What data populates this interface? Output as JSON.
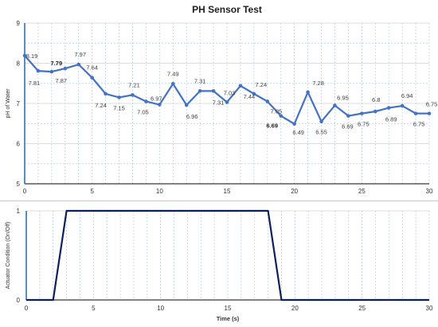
{
  "chart_data": [
    {
      "type": "line",
      "title": "PH Sensor Test",
      "xlabel": "",
      "ylabel": "pH of Water",
      "xlim": [
        0,
        30
      ],
      "ylim": [
        5,
        9
      ],
      "x_ticks": [
        "0",
        "5",
        "10",
        "15",
        "20",
        "25",
        "30"
      ],
      "y_ticks": [
        "5",
        "6",
        "7",
        "8",
        "9"
      ],
      "grid": true,
      "series_color": "#4472c4",
      "x": [
        0,
        1,
        2,
        3,
        4,
        5,
        6,
        7,
        8,
        9,
        10,
        11,
        12,
        13,
        14,
        15,
        16,
        17,
        18,
        19,
        20,
        21,
        22,
        23,
        24,
        25,
        26,
        27,
        28,
        29,
        30
      ],
      "values": [
        8.19,
        7.81,
        7.79,
        7.87,
        7.97,
        7.64,
        7.24,
        7.15,
        7.21,
        7.05,
        6.97,
        7.49,
        6.96,
        7.31,
        7.31,
        7.03,
        7.44,
        7.24,
        7.05,
        6.69,
        6.49,
        7.28,
        6.55,
        6.95,
        6.69,
        6.75,
        6.8,
        6.89,
        6.94,
        6.75,
        6.75
      ],
      "labels": [
        "8.19",
        "7.81",
        "7.79",
        "7.87",
        "7.97",
        "7.64",
        "7.24",
        "7.15",
        "7.21",
        "7.05",
        "6.97",
        "7.49",
        "6.96",
        "7.31",
        "7.31",
        "7.03",
        "7.44",
        "7.24",
        "7.05",
        "6.69",
        "6.49",
        "7.28",
        "6.55",
        "6.95",
        "6.69",
        "6.75",
        "6.8",
        "6.89",
        "6.94",
        "6.75",
        "6.75"
      ]
    },
    {
      "type": "line",
      "title": "",
      "xlabel": "Time (s)",
      "ylabel": "Actuator Condition (On/Off)",
      "xlim": [
        0,
        30
      ],
      "ylim": [
        0,
        1
      ],
      "x_ticks": [
        "0",
        "5",
        "10",
        "15",
        "20",
        "25",
        "30"
      ],
      "y_ticks": [
        "0",
        "1"
      ],
      "grid": true,
      "series_color": "#0b1f5c",
      "x": [
        0,
        2,
        3,
        18,
        19,
        30
      ],
      "values": [
        0,
        0,
        1,
        1,
        0,
        0
      ]
    }
  ]
}
